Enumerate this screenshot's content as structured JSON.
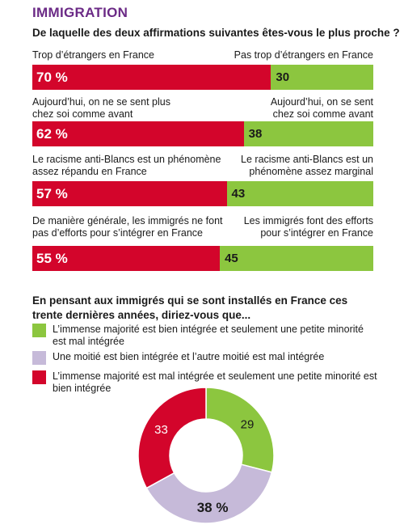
{
  "section_title": "IMMIGRATION",
  "question1": "De laquelle des deux affirmations suivantes êtes-vous le plus proche ?",
  "colors": {
    "accent": "#6b2a86",
    "red": "#d3052b",
    "green": "#8cc63f",
    "lilac": "#c6bad9"
  },
  "chart_data": [
    {
      "type": "bar",
      "orientation": "horizontal-stacked",
      "title": "De laquelle des deux affirmations suivantes êtes-vous le plus proche ?",
      "rows": [
        {
          "left_label": "Trop d’étrangers en France",
          "right_label": "Pas trop d’étrangers en France",
          "left_value": 70,
          "left_text": "70 %",
          "right_value": 30,
          "right_text": "30"
        },
        {
          "left_label": "Aujourd’hui, on ne se sent plus chez soi comme avant",
          "right_label": "Aujourd’hui, on se sent chez soi comme avant",
          "left_value": 62,
          "left_text": "62 %",
          "right_value": 38,
          "right_text": "38"
        },
        {
          "left_label": "Le racisme anti-Blancs est un phénomène assez répandu en France",
          "right_label": "Le racisme anti-Blancs est un phénomène assez marginal",
          "left_value": 57,
          "left_text": "57 %",
          "right_value": 43,
          "right_text": "43"
        },
        {
          "left_label": "De manière générale, les immigrés ne font pas d’efforts pour s’intégrer en France",
          "right_label": "Les immigrés font des efforts pour s’intégrer en France",
          "left_value": 55,
          "left_text": "55 %",
          "right_value": 45,
          "right_text": "45"
        }
      ]
    },
    {
      "type": "pie",
      "variant": "donut",
      "title": "En pensant aux immigrés qui se sont installés en France ces trente dernières années, diriez-vous que...",
      "slices": [
        {
          "name": "L’immense majorité est bien intégrée et seulement une petite minorité est mal intégrée",
          "value": 29,
          "text": "29",
          "color": "#8cc63f"
        },
        {
          "name": "Une moitié est bien intégrée et l’autre moitié est mal intégrée",
          "value": 38,
          "text": "38 %",
          "color": "#c6bad9"
        },
        {
          "name": "L’immense majorité est mal intégrée et seulement une petite minorité est bien intégrée",
          "value": 33,
          "text": "33",
          "color": "#d3052b"
        }
      ]
    }
  ]
}
